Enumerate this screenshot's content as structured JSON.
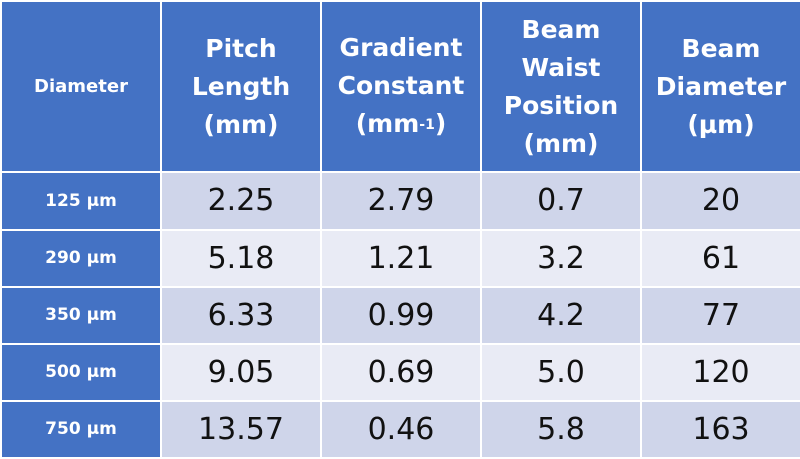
{
  "table": {
    "corner_label": "Diameter",
    "headers": [
      {
        "lines": [
          "Pitch",
          "Length",
          "(mm)"
        ]
      },
      {
        "lines": [
          "Gradient",
          "Constant"
        ],
        "unit_base": "(mm",
        "unit_sup": "-1",
        "unit_close": ")"
      },
      {
        "lines": [
          "Beam",
          "Waist",
          "Position",
          "(mm)"
        ]
      },
      {
        "lines": [
          "Beam",
          "Diameter",
          "(µm)"
        ]
      }
    ],
    "rows": [
      {
        "label": "125 µm",
        "values": [
          "2.25",
          "2.79",
          "0.7",
          "20"
        ]
      },
      {
        "label": "290 µm",
        "values": [
          "5.18",
          "1.21",
          "3.2",
          "61"
        ]
      },
      {
        "label": "350 µm",
        "values": [
          "6.33",
          "0.99",
          "4.2",
          "77"
        ]
      },
      {
        "label": "500 µm",
        "values": [
          "9.05",
          "0.69",
          "5.0",
          "120"
        ]
      },
      {
        "label": "750 µm",
        "values": [
          "13.57",
          "0.46",
          "5.8",
          "163"
        ]
      }
    ]
  },
  "colors": {
    "header_bg": "#4472c4",
    "row_odd_bg": "#cfd5ea",
    "row_even_bg": "#e9ebf5"
  }
}
